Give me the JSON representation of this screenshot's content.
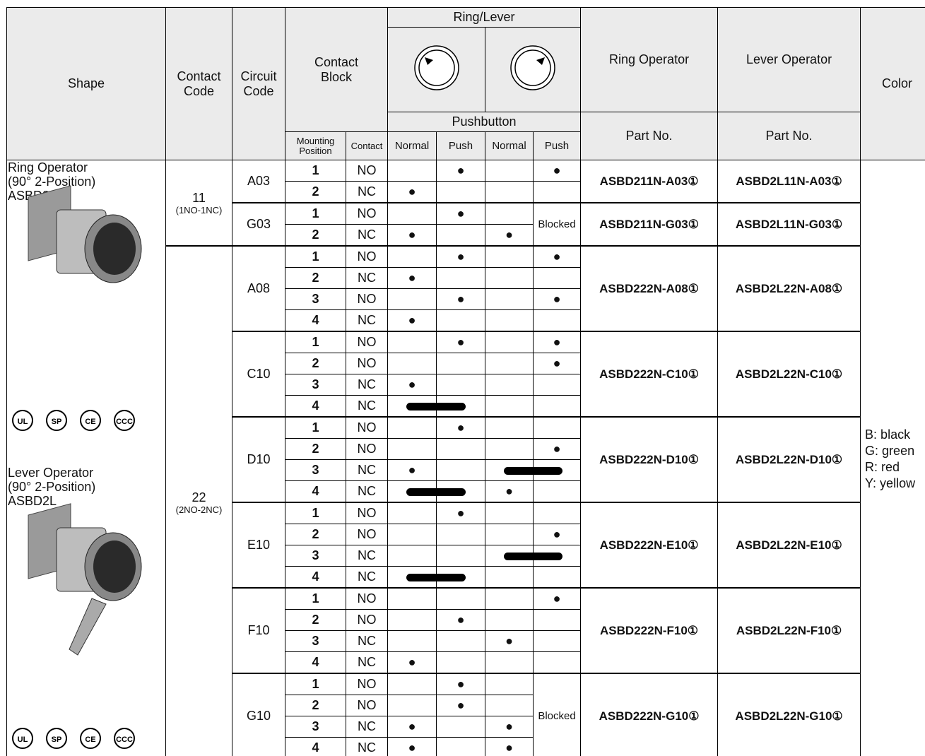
{
  "header": {
    "shape": "Shape",
    "contact_code": "Contact Code",
    "circuit_code": "Circuit Code",
    "contact_block": "Contact Block",
    "mounting_position": "Mounting Position",
    "contact": "Contact",
    "ring_lever": "Ring/Lever",
    "pushbutton": "Pushbutton",
    "normal_1": "Normal",
    "push_1": "Push",
    "normal_2": "Normal",
    "push_2": "Push",
    "ring_operator": "Ring Operator",
    "lever_operator": "Lever Operator",
    "part_no_ring": "Part No.",
    "part_no_lever": "Part No.",
    "color": "Color"
  },
  "shape": {
    "ring": {
      "name": "Ring Operator",
      "position": "(90° 2-Position)",
      "model": "ASBD2"
    },
    "lever": {
      "name": "Lever Operator",
      "position": "(90° 2-Position)",
      "model": "ASBD2L"
    },
    "certifications": [
      "UL",
      "SP",
      "CE",
      "CCC"
    ]
  },
  "contact_codes": [
    {
      "code": "11",
      "config": "(1NO-1NC)",
      "groups": [
        {
          "circuit": "A03",
          "ring_part": "ASBD211N-A03①",
          "lever_part": "ASBD2L11N-A03①",
          "rows": [
            {
              "position": "1",
              "contact": "NO",
              "cells": [
                null,
                "●",
                null,
                "●"
              ]
            },
            {
              "position": "2",
              "contact": "NC",
              "cells": [
                "●",
                null,
                null,
                null
              ]
            }
          ]
        },
        {
          "circuit": "G03",
          "ring_part": "ASBD211N-G03①",
          "lever_part": "ASBD2L11N-G03①",
          "blocked": "Blocked",
          "rows": [
            {
              "position": "1",
              "contact": "NO",
              "cells": [
                null,
                "●",
                null
              ]
            },
            {
              "position": "2",
              "contact": "NC",
              "cells": [
                "●",
                null,
                "●"
              ]
            }
          ]
        }
      ]
    },
    {
      "code": "22",
      "config": "(2NO-2NC)",
      "groups": [
        {
          "circuit": "A08",
          "ring_part": "ASBD222N-A08①",
          "lever_part": "ASBD2L22N-A08①",
          "rows": [
            {
              "position": "1",
              "contact": "NO",
              "cells": [
                null,
                "●",
                null,
                "●"
              ]
            },
            {
              "position": "2",
              "contact": "NC",
              "cells": [
                "●",
                null,
                null,
                null
              ]
            },
            {
              "position": "3",
              "contact": "NO",
              "cells": [
                null,
                "●",
                null,
                "●"
              ]
            },
            {
              "position": "4",
              "contact": "NC",
              "cells": [
                "●",
                null,
                null,
                null
              ]
            }
          ]
        },
        {
          "circuit": "C10",
          "ring_part": "ASBD222N-C10①",
          "lever_part": "ASBD2L22N-C10①",
          "rows": [
            {
              "position": "1",
              "contact": "NO",
              "cells": [
                null,
                "●",
                null,
                "●"
              ]
            },
            {
              "position": "2",
              "contact": "NO",
              "cells": [
                null,
                null,
                null,
                "●"
              ]
            },
            {
              "position": "3",
              "contact": "NC",
              "cells": [
                "●",
                null,
                null,
                null
              ]
            },
            {
              "position": "4",
              "contact": "NC",
              "cells": [
                null,
                null,
                null,
                null
              ]
            }
          ]
        },
        {
          "circuit": "D10",
          "ring_part": "ASBD222N-D10①",
          "lever_part": "ASBD2L22N-D10①",
          "rows": [
            {
              "position": "1",
              "contact": "NO",
              "cells": [
                null,
                "●",
                null,
                null
              ]
            },
            {
              "position": "2",
              "contact": "NO",
              "cells": [
                null,
                null,
                null,
                "●"
              ]
            },
            {
              "position": "3",
              "contact": "NC",
              "cells": [
                "●",
                null,
                null,
                null
              ]
            },
            {
              "position": "4",
              "contact": "NC",
              "cells": [
                null,
                null,
                "●",
                null
              ]
            }
          ]
        },
        {
          "circuit": "E10",
          "ring_part": "ASBD222N-E10①",
          "lever_part": "ASBD2L22N-E10①",
          "rows": [
            {
              "position": "1",
              "contact": "NO",
              "cells": [
                null,
                "●",
                null,
                null
              ]
            },
            {
              "position": "2",
              "contact": "NO",
              "cells": [
                null,
                null,
                null,
                "●"
              ]
            },
            {
              "position": "3",
              "contact": "NC",
              "cells": [
                null,
                null,
                null,
                null
              ]
            },
            {
              "position": "4",
              "contact": "NC",
              "cells": [
                null,
                null,
                null,
                null
              ]
            }
          ]
        },
        {
          "circuit": "F10",
          "ring_part": "ASBD222N-F10①",
          "lever_part": "ASBD2L22N-F10①",
          "rows": [
            {
              "position": "1",
              "contact": "NO",
              "cells": [
                null,
                null,
                null,
                "●"
              ]
            },
            {
              "position": "2",
              "contact": "NO",
              "cells": [
                null,
                "●",
                null,
                null
              ]
            },
            {
              "position": "3",
              "contact": "NC",
              "cells": [
                null,
                null,
                "●",
                null
              ]
            },
            {
              "position": "4",
              "contact": "NC",
              "cells": [
                "●",
                null,
                null,
                null
              ]
            }
          ]
        },
        {
          "circuit": "G10",
          "ring_part": "ASBD222N-G10①",
          "lever_part": "ASBD2L22N-G10①",
          "blocked": "Blocked",
          "rows": [
            {
              "position": "1",
              "contact": "NO",
              "cells": [
                null,
                "●",
                null
              ]
            },
            {
              "position": "2",
              "contact": "NO",
              "cells": [
                null,
                "●",
                null
              ]
            },
            {
              "position": "3",
              "contact": "NC",
              "cells": [
                "●",
                null,
                "●"
              ]
            },
            {
              "position": "4",
              "contact": "NC",
              "cells": [
                "●",
                null,
                "●"
              ]
            }
          ]
        }
      ]
    }
  ],
  "colors": [
    "B: black",
    "G: green",
    "R: red",
    "Y: yellow"
  ]
}
